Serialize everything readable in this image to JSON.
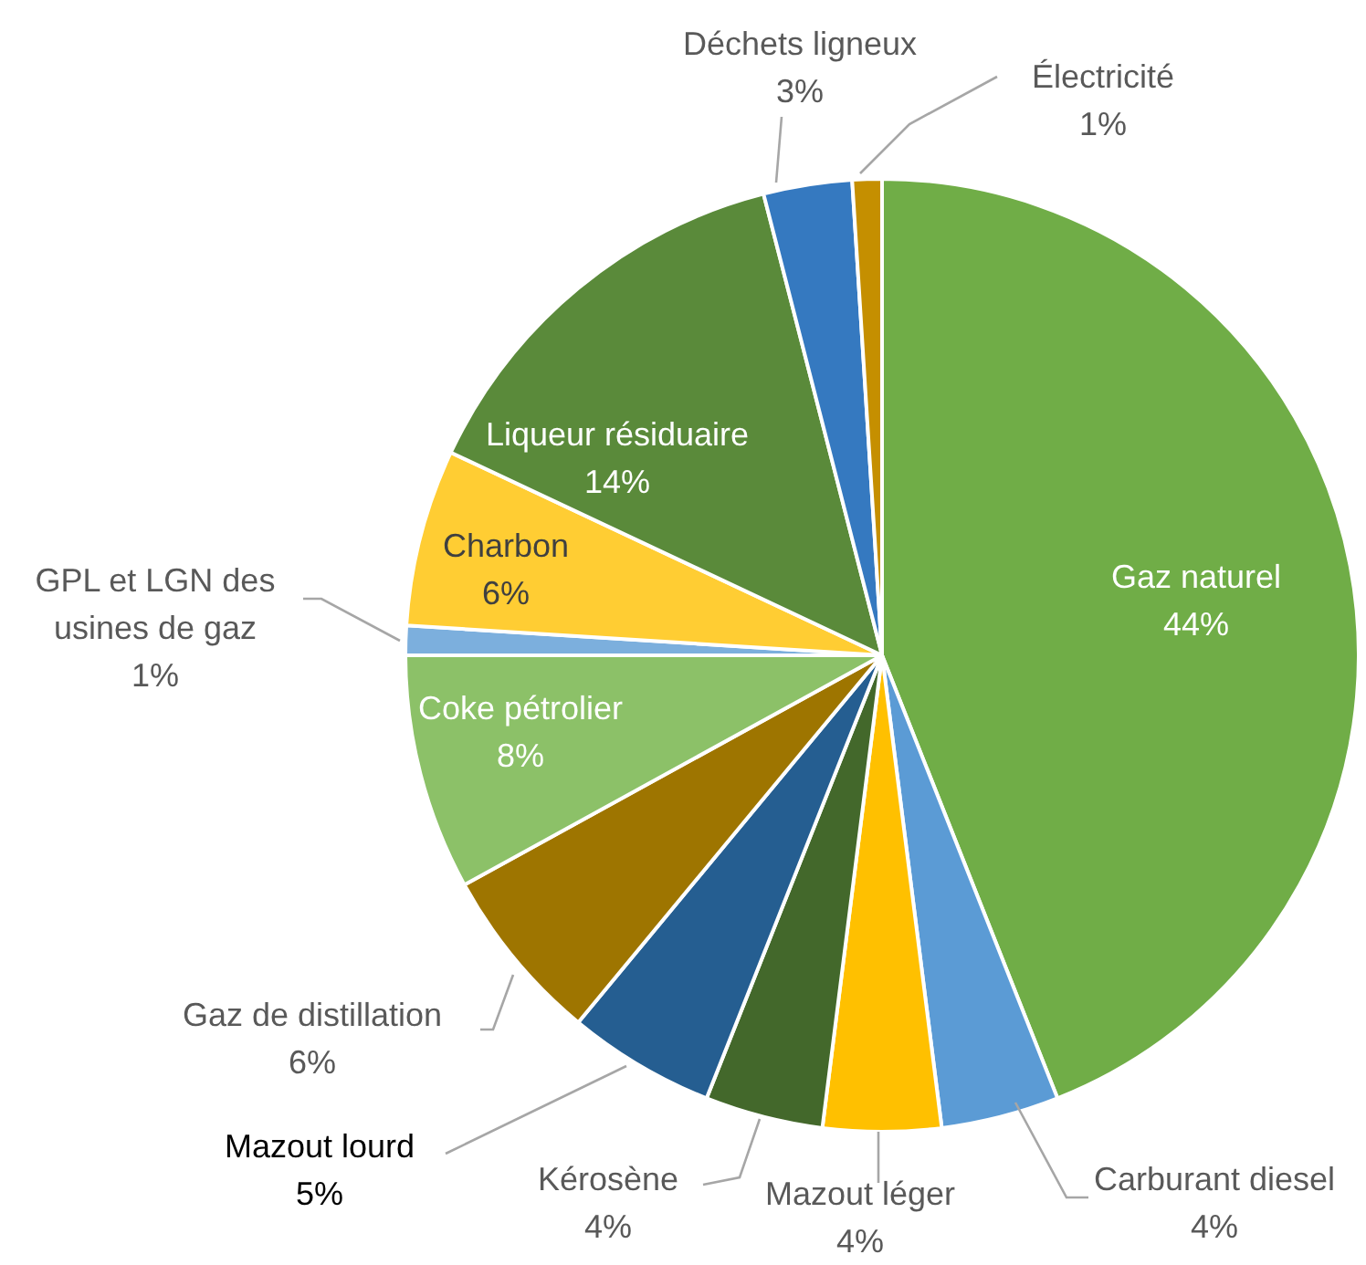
{
  "chart_data": {
    "type": "pie",
    "categories": [
      "Gaz naturel",
      "Carburant diesel",
      "Mazout léger",
      "Kérosène",
      "Mazout lourd",
      "Gaz de distillation",
      "Coke pétrolier",
      "GPL et LGN des usines de gaz",
      "Charbon",
      "Liqueur résiduaire",
      "Déchets ligneux",
      "Électricité"
    ],
    "values": [
      44,
      4,
      4,
      4,
      5,
      6,
      8,
      1,
      6,
      14,
      3,
      1
    ],
    "colors": [
      "#70ad47",
      "#5b9bd5",
      "#ffc000",
      "#43682b",
      "#255e91",
      "#9e7500",
      "#8cc168",
      "#7cafdd",
      "#ffcd33",
      "#5a8a3a",
      "#3579c0",
      "#c58f00"
    ],
    "value_labels": [
      "44%",
      "4%",
      "4%",
      "4%",
      "5%",
      "6%",
      "8%",
      "1%",
      "6%",
      "14%",
      "3%",
      "1%"
    ]
  }
}
